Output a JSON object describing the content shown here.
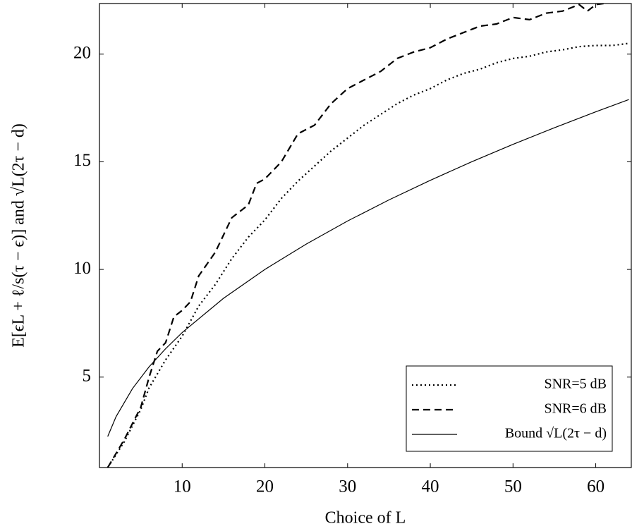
{
  "chart_data": {
    "type": "line",
    "xlabel": "Choice of L",
    "ylabel": "E[ϵL + ℓ/s(τ − ϵ)] and √L(2τ − d)",
    "xlim": [
      0,
      64.3
    ],
    "ylim": [
      0.8,
      22.35
    ],
    "xticks": [
      10,
      20,
      30,
      40,
      50,
      60
    ],
    "yticks": [
      5,
      10,
      15,
      20
    ],
    "legend": "lower right",
    "series": [
      {
        "name": "SNR=5 dB",
        "color": "#000000",
        "style": "dotted",
        "x": [
          1,
          3,
          5,
          6,
          8,
          10,
          12,
          14,
          16,
          18,
          20,
          22,
          24,
          26,
          28,
          30,
          32,
          34,
          36,
          38,
          40,
          42,
          44,
          46,
          48,
          50,
          52,
          54,
          56,
          58,
          60,
          62,
          64
        ],
        "values": [
          0.8,
          2,
          3.5,
          4.5,
          5.8,
          6.9,
          8.3,
          9.3,
          10.5,
          11.5,
          12.3,
          13.3,
          14.1,
          14.8,
          15.5,
          16.1,
          16.7,
          17.2,
          17.7,
          18.1,
          18.4,
          18.8,
          19.1,
          19.3,
          19.6,
          19.8,
          19.9,
          20.1,
          20.2,
          20.35,
          20.4,
          20.4,
          20.5
        ]
      },
      {
        "name": "SNR=6 dB",
        "color": "#000000",
        "style": "dashed",
        "x": [
          1,
          3,
          5,
          6,
          7,
          8,
          9,
          10,
          11,
          12,
          14,
          16,
          18,
          19,
          20,
          22,
          24,
          26,
          28,
          30,
          32,
          34,
          36,
          38,
          40,
          42,
          44,
          46,
          48,
          50,
          52,
          54,
          56,
          58,
          59,
          60,
          62
        ],
        "values": [
          0.8,
          2.1,
          3.6,
          5,
          6.2,
          6.6,
          7.8,
          8.1,
          8.5,
          9.7,
          10.8,
          12.4,
          13,
          14,
          14.2,
          15,
          16.3,
          16.7,
          17.7,
          18.4,
          18.8,
          19.2,
          19.8,
          20.1,
          20.3,
          20.7,
          21,
          21.3,
          21.4,
          21.7,
          21.6,
          21.9,
          22,
          22.3,
          22,
          22.3,
          22.4
        ]
      },
      {
        "name": "Bound √L(2τ − d)",
        "color": "#000000",
        "style": "solid",
        "x": [
          1,
          2,
          4,
          6,
          8,
          10,
          15,
          20,
          25,
          30,
          35,
          40,
          45,
          50,
          55,
          60,
          64
        ],
        "values": [
          2.24,
          3.16,
          4.47,
          5.48,
          6.32,
          7.07,
          8.66,
          10,
          11.18,
          12.25,
          13.23,
          14.14,
          15,
          15.81,
          16.58,
          17.32,
          17.89
        ]
      }
    ]
  }
}
